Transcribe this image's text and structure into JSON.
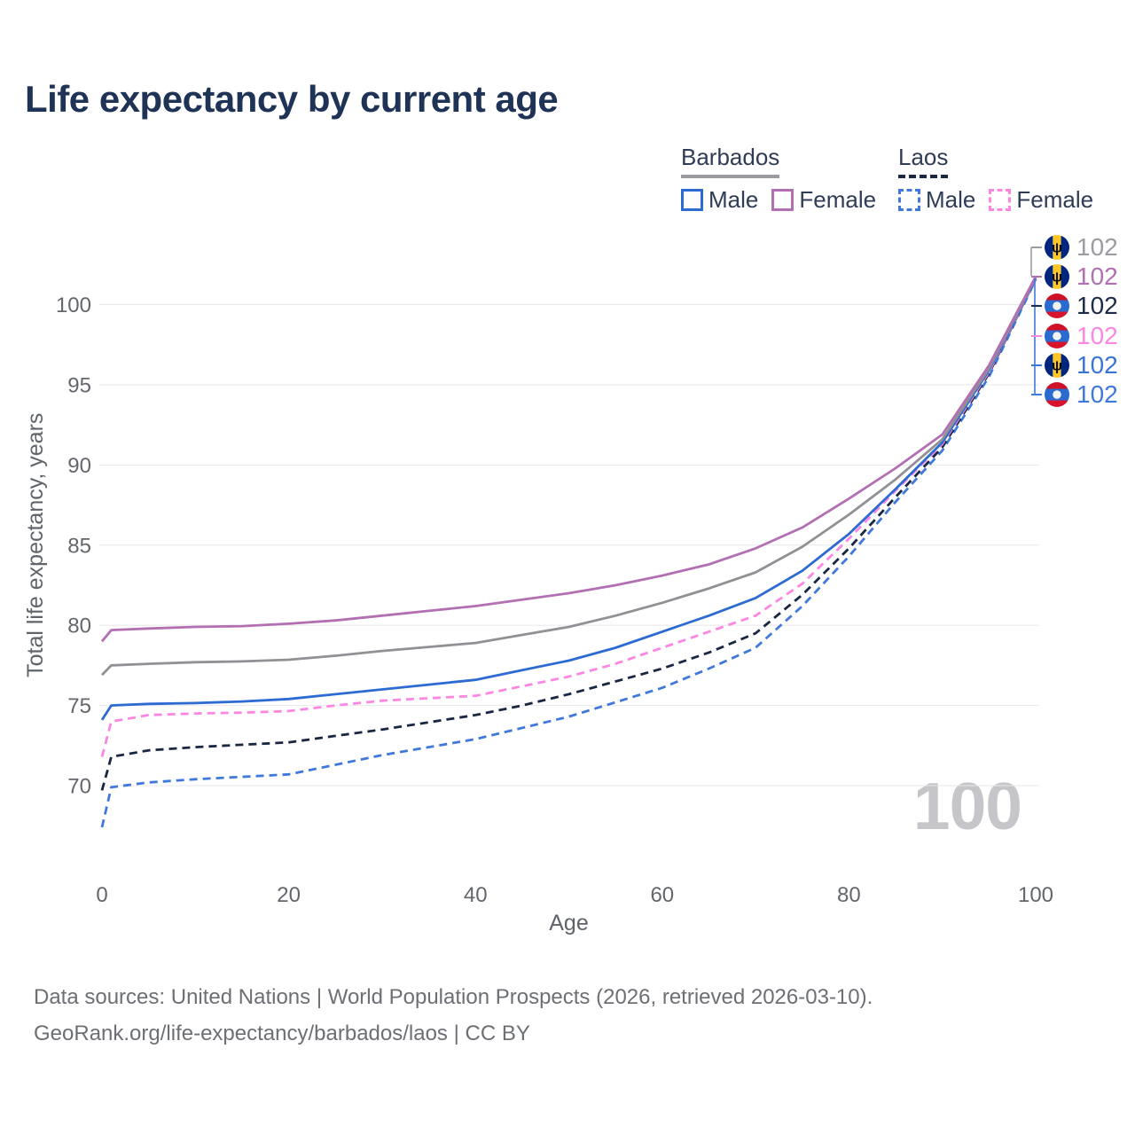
{
  "title": "Life expectancy by current age",
  "watermark": "100",
  "legend": {
    "groups": [
      {
        "label": "Barbados",
        "underline": "solid",
        "underline_color": "#9b9b9f",
        "items": [
          {
            "label": "Male",
            "color": "#2d6bd3",
            "dash": false
          },
          {
            "label": "Female",
            "color": "#b26fb2",
            "dash": false
          }
        ]
      },
      {
        "label": "Laos",
        "underline": "dashed",
        "underline_color": "#1a2742",
        "items": [
          {
            "label": "Male",
            "color": "#4078dc",
            "dash": true
          },
          {
            "label": "Female",
            "color": "#fb87e2",
            "dash": true
          }
        ]
      }
    ]
  },
  "chart_data": {
    "type": "line",
    "title": "Life expectancy by current age",
    "xlabel": "Age",
    "ylabel": "Total life expectancy, years",
    "xlim": [
      0,
      100
    ],
    "ylim": [
      67,
      102.5
    ],
    "xticks": [
      0,
      20,
      40,
      60,
      80,
      100
    ],
    "yticks": [
      70,
      75,
      80,
      85,
      90,
      95,
      100
    ],
    "grid": "horizontal",
    "legend_position": "top-right",
    "x": [
      0,
      1,
      5,
      10,
      15,
      20,
      25,
      30,
      35,
      40,
      45,
      50,
      55,
      60,
      65,
      70,
      75,
      80,
      85,
      90,
      95,
      100
    ],
    "series": [
      {
        "name": "Laos Male",
        "style": "dashed",
        "color": "#4078dc",
        "values": [
          67.4,
          69.9,
          70.2,
          70.4,
          70.55,
          70.7,
          71.3,
          71.9,
          72.4,
          72.9,
          73.6,
          74.3,
          75.2,
          76.1,
          77.3,
          78.6,
          81.2,
          84.3,
          87.7,
          90.9,
          95.5,
          101.55
        ]
      },
      {
        "name": "Laos",
        "style": "dashed",
        "color": "#1a2742",
        "values": [
          69.7,
          71.8,
          72.2,
          72.4,
          72.55,
          72.7,
          73.1,
          73.5,
          73.95,
          74.4,
          75.0,
          75.7,
          76.5,
          77.3,
          78.3,
          79.5,
          81.9,
          84.8,
          88.0,
          91.1,
          95.7,
          101.6
        ]
      },
      {
        "name": "Laos Female",
        "style": "dashed",
        "color": "#fb87e2",
        "values": [
          71.8,
          74.0,
          74.4,
          74.5,
          74.55,
          74.65,
          75.0,
          75.3,
          75.45,
          75.6,
          76.2,
          76.8,
          77.6,
          78.6,
          79.6,
          80.6,
          82.6,
          85.4,
          88.4,
          91.3,
          95.8,
          101.6
        ]
      },
      {
        "name": "Barbados Male",
        "style": "solid",
        "color": "#2d6bd3",
        "values": [
          74.1,
          75.0,
          75.1,
          75.15,
          75.25,
          75.4,
          75.7,
          76.0,
          76.3,
          76.6,
          77.2,
          77.8,
          78.6,
          79.6,
          80.6,
          81.7,
          83.4,
          85.7,
          88.5,
          91.4,
          95.9,
          101.65
        ]
      },
      {
        "name": "Barbados",
        "style": "solid",
        "color": "#909095",
        "values": [
          76.9,
          77.5,
          77.6,
          77.7,
          77.75,
          77.85,
          78.1,
          78.4,
          78.65,
          78.9,
          79.4,
          79.9,
          80.6,
          81.4,
          82.3,
          83.3,
          84.9,
          86.9,
          89.1,
          91.6,
          96.0,
          101.7
        ]
      },
      {
        "name": "Barbados Female",
        "style": "solid",
        "color": "#b26fb2",
        "values": [
          79.0,
          79.7,
          79.8,
          79.9,
          79.95,
          80.1,
          80.3,
          80.6,
          80.9,
          81.2,
          81.6,
          82.0,
          82.5,
          83.1,
          83.8,
          84.8,
          86.1,
          87.9,
          89.8,
          91.9,
          96.2,
          101.75
        ]
      }
    ]
  },
  "right_labels": [
    {
      "flag": "barbados",
      "series": "Barbados",
      "value": "102",
      "color": "#9b9ba1"
    },
    {
      "flag": "barbados",
      "series": "Barbados Female",
      "value": "102",
      "color": "#b26fb2"
    },
    {
      "flag": "laos",
      "series": "Laos",
      "value": "102",
      "color": "#1b2b49"
    },
    {
      "flag": "laos",
      "series": "Laos Female",
      "value": "102",
      "color": "#fb87e2"
    },
    {
      "flag": "barbados",
      "series": "Barbados Male",
      "value": "102",
      "color": "#3a74d6"
    },
    {
      "flag": "laos",
      "series": "Laos Male",
      "value": "102",
      "color": "#4078dc"
    }
  ],
  "flag_colors": {
    "barbados": {
      "blue": "#00267F",
      "gold": "#FFC726",
      "trident": "#0a0a0a"
    },
    "laos": {
      "red": "#CE1126",
      "blue": "#2a6bd0",
      "disc": "#f2f2f2",
      "dark_red": "#d6132b"
    }
  },
  "footer": {
    "line1": "Data sources: United Nations | World Population Prospects (2026, retrieved 2026-03-10).",
    "line2": "GeoRank.org/life-expectancy/barbados/laos | CC BY"
  }
}
